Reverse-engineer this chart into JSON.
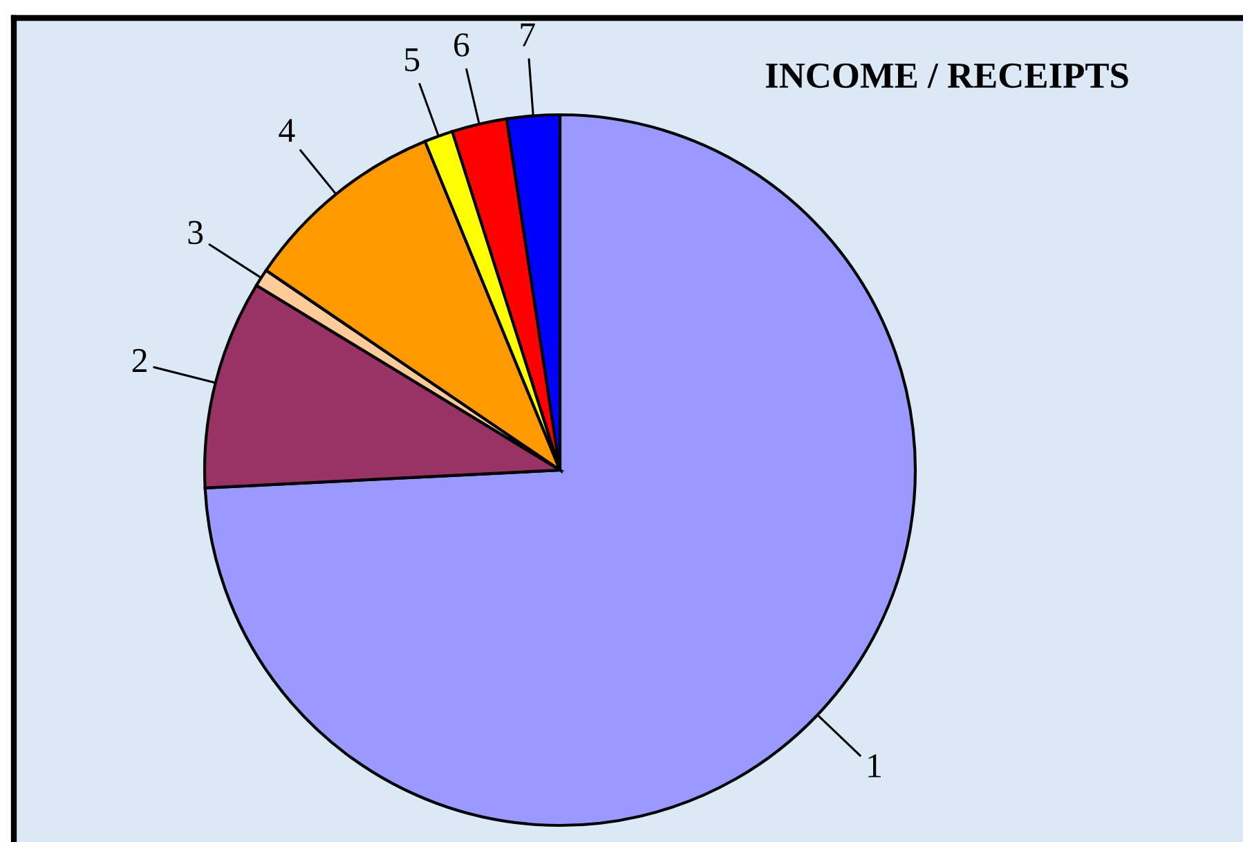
{
  "chart_data": {
    "type": "pie",
    "title": "INCOME / RECEIPTS",
    "categories": [
      "1",
      "2",
      "3",
      "4",
      "5",
      "6",
      "7"
    ],
    "values": [
      74.2,
      9.5,
      0.8,
      9.3,
      1.3,
      2.5,
      2.4
    ],
    "colors": [
      "#9999ff",
      "#993366",
      "#ffcc99",
      "#ff9900",
      "#ffff00",
      "#ff0000",
      "#0000ff"
    ]
  }
}
